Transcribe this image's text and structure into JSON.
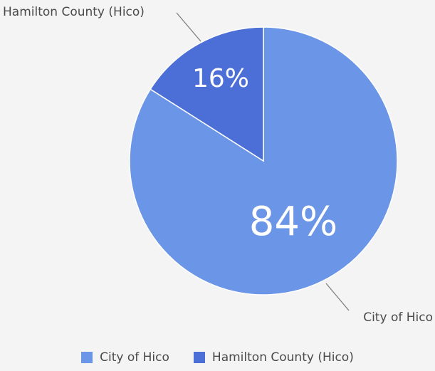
{
  "chart_data": {
    "type": "pie",
    "categories": [
      "City of Hico",
      "Hamilton County (Hico)"
    ],
    "values": [
      84,
      16
    ],
    "value_labels": [
      "84%",
      "16%"
    ],
    "colors": [
      "#6b95e6",
      "#4b6fd6"
    ],
    "legend_position": "bottom"
  }
}
